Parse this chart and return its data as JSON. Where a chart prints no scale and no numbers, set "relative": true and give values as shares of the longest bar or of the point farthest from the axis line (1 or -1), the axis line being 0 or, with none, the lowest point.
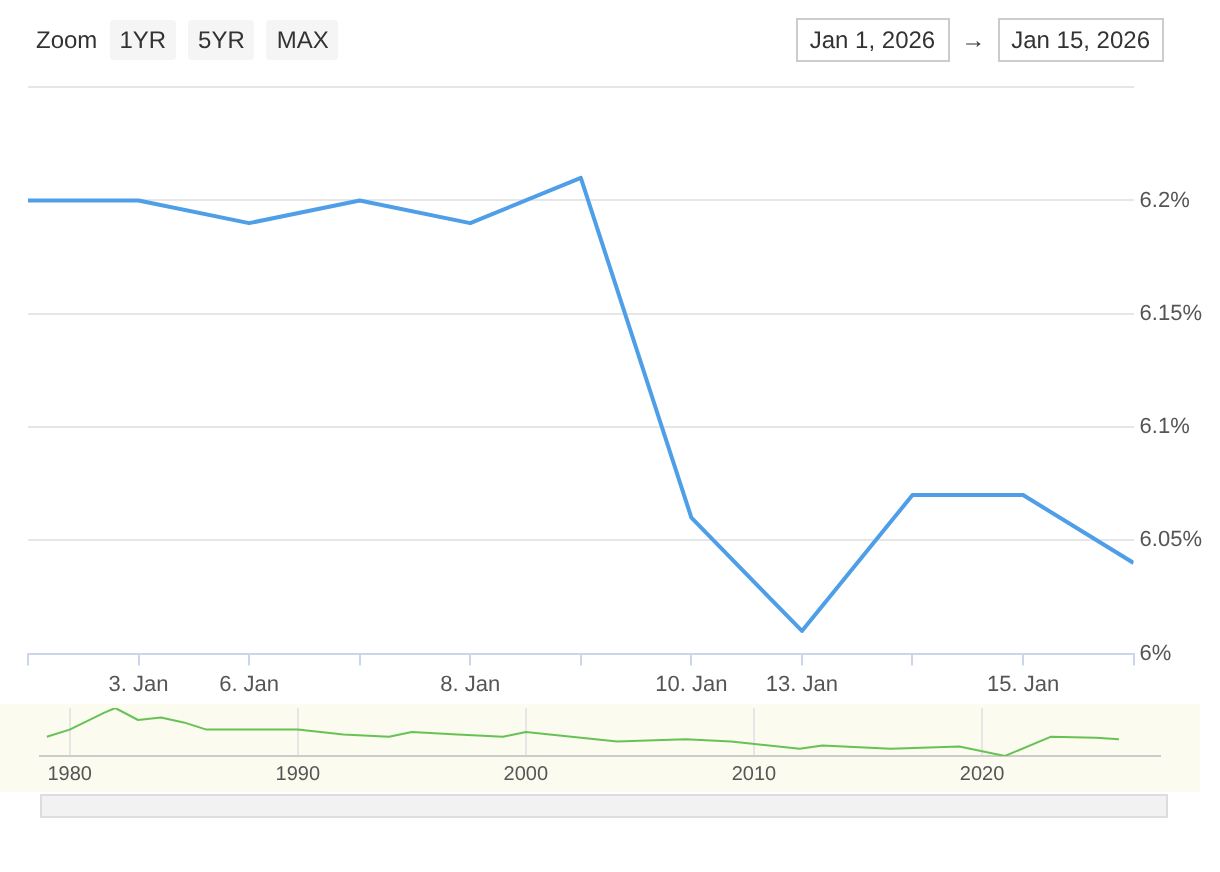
{
  "chart_data": [
    {
      "type": "line",
      "annotations": [
        "Zoom",
        "1YR",
        "5YR",
        "MAX",
        "Jan 1, 2026",
        "→",
        "Jan 15, 2026"
      ],
      "categories": [
        null,
        "3. Jan",
        "6. Jan",
        null,
        "8. Jan",
        null,
        "10. Jan",
        "13. Jan",
        null,
        "15. Jan",
        null
      ],
      "series": [
        {
          "color": "#4f9ee8",
          "values": [
            6.2,
            6.2,
            6.19,
            6.2,
            6.19,
            6.21,
            6.06,
            6.01,
            6.07,
            6.07,
            6.04
          ]
        }
      ],
      "ylim": [
        6,
        6.25
      ],
      "yticks": [
        {
          "value": 6,
          "label": "6%"
        },
        {
          "value": 6.05,
          "label": "6.05%"
        },
        {
          "value": 6.1,
          "label": "6.1%"
        },
        {
          "value": 6.15,
          "label": "6.15%"
        },
        {
          "value": 6.2,
          "label": "6.2%"
        },
        {
          "value": 6.25,
          "label": null
        }
      ],
      "grid": "y",
      "marker": "none",
      "line_style": "solid"
    },
    {
      "type": "line",
      "relative": true,
      "x": [
        1979,
        1980,
        1981.5,
        1982,
        1983,
        1984,
        1985,
        1986,
        1988,
        1990,
        1992,
        1994,
        1995,
        1997,
        1999,
        2000,
        2002,
        2004,
        2007,
        2009,
        2012,
        2013,
        2016,
        2019,
        2021,
        2023,
        2025,
        2026
      ],
      "series": [
        {
          "color": "#66c255",
          "values": [
            0.4,
            0.55,
            0.9,
            1,
            0.75,
            0.8,
            0.7,
            0.55,
            0.55,
            0.55,
            0.45,
            0.4,
            0.5,
            0.45,
            0.4,
            0.5,
            0.4,
            0.3,
            0.35,
            0.3,
            0.15,
            0.22,
            0.15,
            0.2,
            0,
            0.4,
            0.38,
            0.35
          ]
        }
      ],
      "xlim": [
        1978.7,
        2027.8
      ],
      "xticks": [
        1980,
        1990,
        2000,
        2010,
        2020
      ],
      "grid": "x",
      "marker": "none"
    }
  ]
}
